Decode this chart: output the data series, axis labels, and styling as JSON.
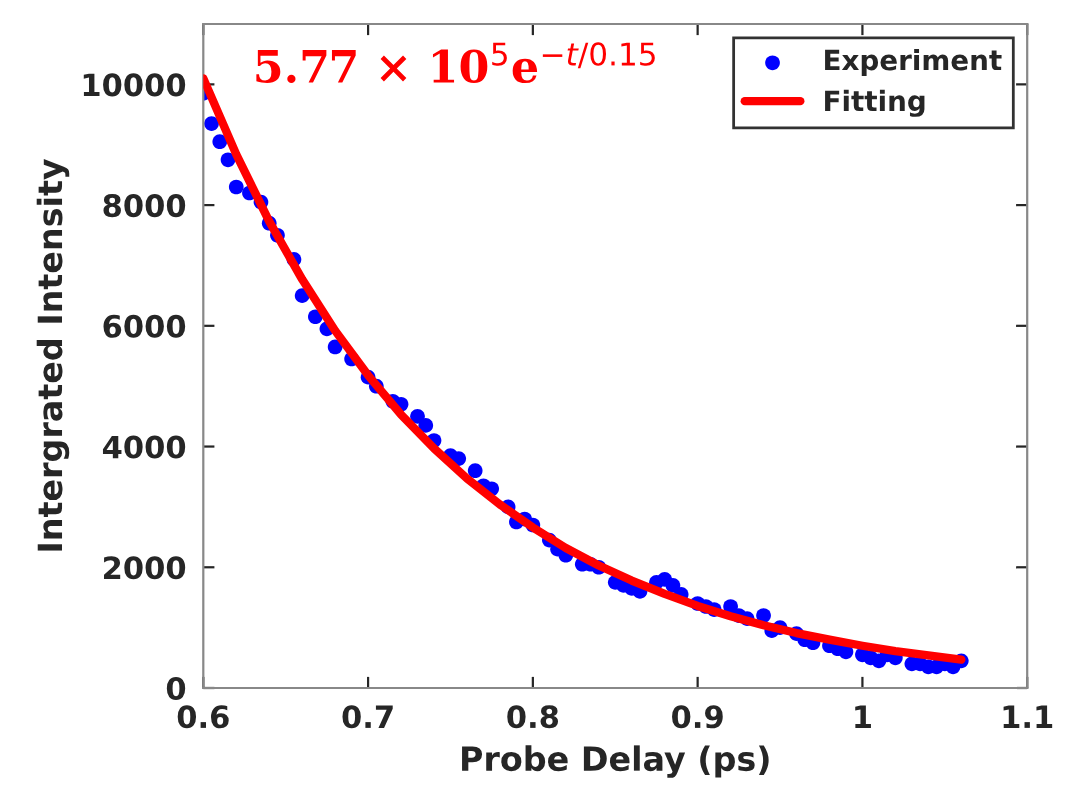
{
  "chart_data": {
    "type": "scatter",
    "xlabel": "Probe Delay (ps)",
    "ylabel": "Intergrated Intensity",
    "annotations": [
      "5.77 × 10$^{5}$e$^{−t/0.15}$"
    ],
    "series": [
      {
        "name": "Experiment",
        "color": "#0000ff",
        "marker": "circle",
        "x": [
          0.6,
          0.605,
          0.61,
          0.615,
          0.62,
          0.628,
          0.635,
          0.64,
          0.645,
          0.655,
          0.66,
          0.668,
          0.675,
          0.68,
          0.69,
          0.7,
          0.705,
          0.715,
          0.72,
          0.73,
          0.735,
          0.74,
          0.75,
          0.755,
          0.765,
          0.77,
          0.775,
          0.785,
          0.79,
          0.795,
          0.8,
          0.81,
          0.815,
          0.82,
          0.83,
          0.835,
          0.84,
          0.85,
          0.855,
          0.86,
          0.865,
          0.875,
          0.88,
          0.885,
          0.89,
          0.9,
          0.905,
          0.91,
          0.92,
          0.925,
          0.93,
          0.94,
          0.945,
          0.95,
          0.96,
          0.965,
          0.97,
          0.98,
          0.985,
          0.99,
          1.0,
          1.005,
          1.01,
          1.015,
          1.02,
          1.03,
          1.035,
          1.04,
          1.045,
          1.05,
          1.055,
          1.06
        ],
        "values": [
          9850,
          9350,
          9050,
          8750,
          8300,
          8200,
          8050,
          7700,
          7500,
          7100,
          6500,
          6150,
          5950,
          5650,
          5450,
          5150,
          5000,
          4750,
          4700,
          4500,
          4350,
          4100,
          3850,
          3800,
          3600,
          3350,
          3300,
          3000,
          2750,
          2800,
          2700,
          2450,
          2300,
          2200,
          2050,
          2050,
          2000,
          1750,
          1700,
          1650,
          1600,
          1750,
          1800,
          1700,
          1550,
          1400,
          1350,
          1300,
          1350,
          1200,
          1150,
          1200,
          950,
          1000,
          900,
          800,
          750,
          700,
          650,
          600,
          550,
          500,
          450,
          550,
          500,
          400,
          400,
          350,
          350,
          400,
          350,
          450
        ]
      },
      {
        "name": "Fitting",
        "type": "line",
        "color": "#ff0000",
        "line_style": "solid",
        "x": [
          0.6,
          0.62,
          0.64,
          0.66,
          0.68,
          0.7,
          0.72,
          0.74,
          0.76,
          0.78,
          0.8,
          0.82,
          0.84,
          0.86,
          0.88,
          0.9,
          0.92,
          0.94,
          0.96,
          0.98,
          1.0,
          1.02,
          1.04,
          1.06
        ],
        "values": [
          10100,
          8840,
          7730,
          6770,
          5920,
          5180,
          4530,
          3970,
          3470,
          3040,
          2660,
          2320,
          2030,
          1780,
          1560,
          1360,
          1190,
          1040,
          910,
          800,
          700,
          610,
          540,
          470
        ]
      }
    ],
    "xlim": [
      0.6,
      1.1
    ],
    "xticks": [
      0.6,
      0.7,
      0.8,
      0.9,
      1,
      1.1
    ],
    "ylim": [
      0,
      11000
    ],
    "yticks": [
      0,
      2000,
      4000,
      6000,
      8000,
      10000
    ],
    "grid": false,
    "legend": "top right"
  }
}
